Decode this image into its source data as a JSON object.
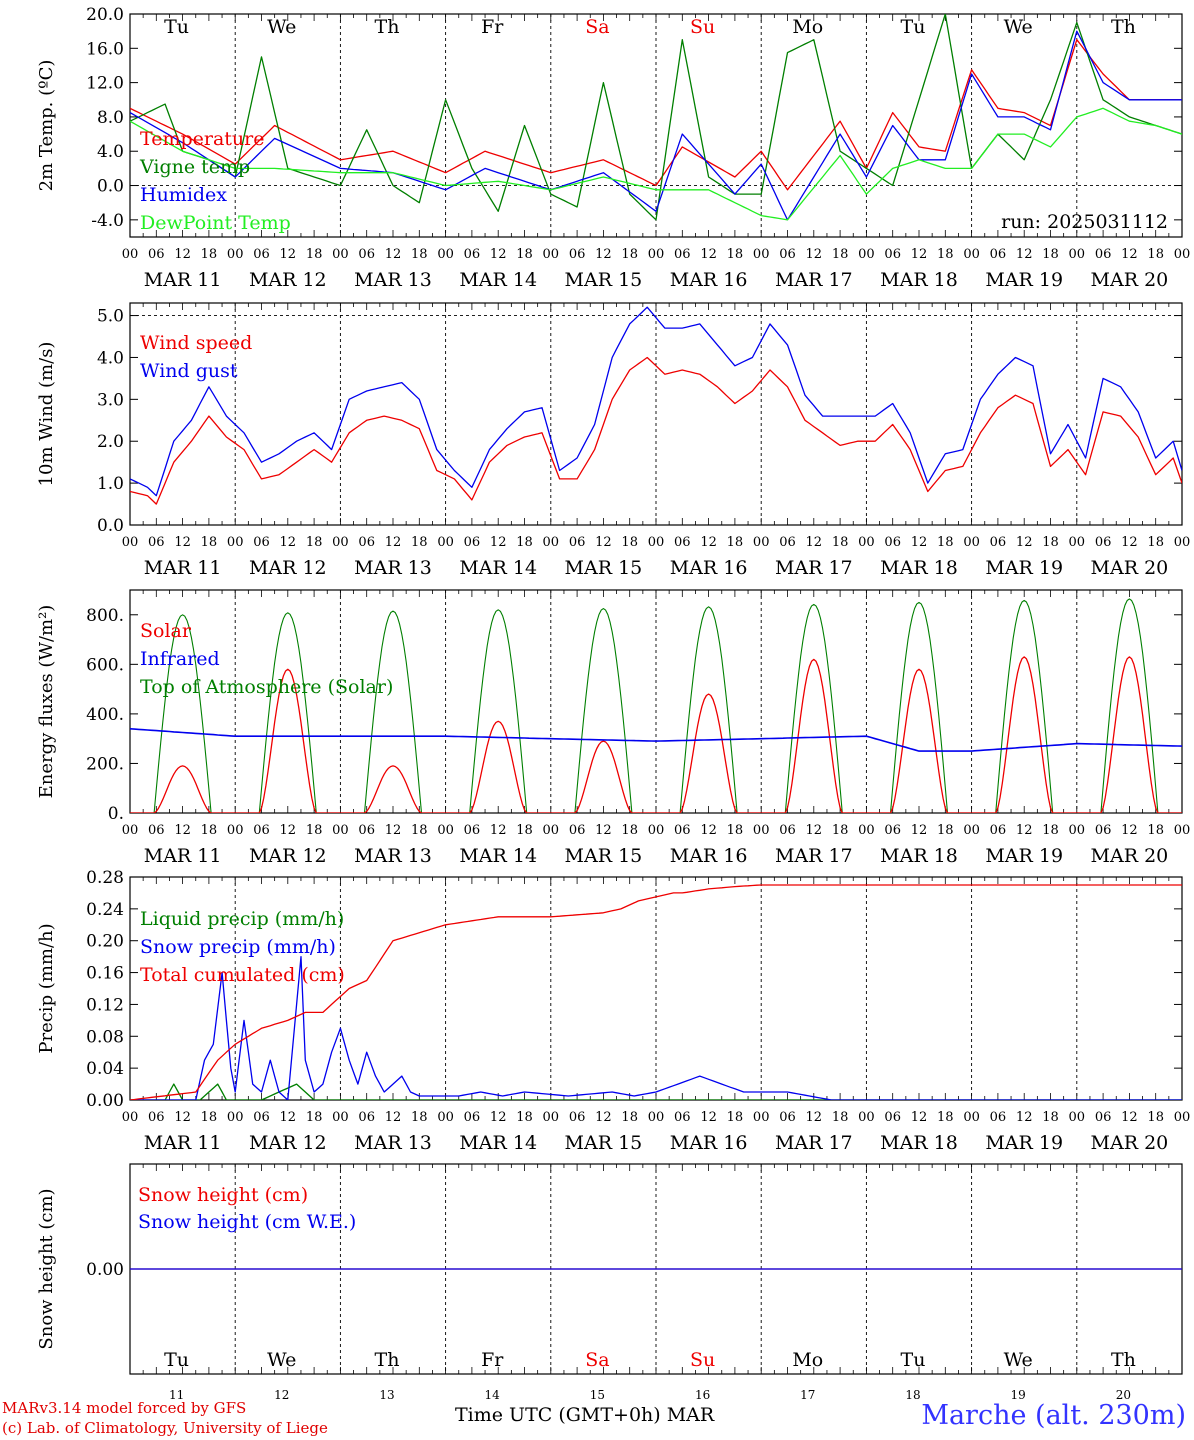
{
  "run_label": "run: 2025031112",
  "xaxis_title": "Time UTC (GMT+0h) MAR",
  "credit_lines": [
    "MARv3.14 model forced by GFS",
    "(c) Lab. of Climatology, University of Liege"
  ],
  "station_label": "Marche (alt. 230m)",
  "day_abbrevs": [
    "Tu",
    "We",
    "Th",
    "Fr",
    "Sa",
    "Su",
    "Mo",
    "Tu",
    "We",
    "Th"
  ],
  "weekend_color_days": [
    "Sa",
    "Su"
  ],
  "date_labels": [
    "MAR 11",
    "MAR 12",
    "MAR 13",
    "MAR 14",
    "MAR 15",
    "MAR 16",
    "MAR 17",
    "MAR 18",
    "MAR 19",
    "MAR 20"
  ],
  "bottom_day_numbers": [
    "11",
    "12",
    "13",
    "14",
    "15",
    "16",
    "17",
    "18",
    "19",
    "20"
  ],
  "hour_ticks": [
    "00",
    "06",
    "12",
    "18"
  ],
  "colors": {
    "red": "#ee0000",
    "green": "#007f00",
    "blue": "#0000ee",
    "lightgreen": "#22ee22"
  },
  "chart_data": [
    {
      "type": "line",
      "ylabel": "2m Temp. (ºC)",
      "ylim": [
        -6,
        20
      ],
      "yticks": [
        "20.0",
        "16.0",
        "12.0",
        "8.0",
        "4.0",
        "0.0",
        "-4.0"
      ],
      "ytick_values": [
        20,
        16,
        12,
        8,
        4,
        0,
        -4
      ],
      "dashed_ref": [
        0
      ],
      "x_range_hours": [
        0,
        240
      ],
      "series": [
        {
          "name": "Temperature",
          "color": "#ee0000",
          "x": [
            0,
            12,
            24,
            33,
            48,
            60,
            72,
            81,
            96,
            108,
            120,
            126,
            138,
            144,
            150,
            162,
            168,
            174,
            180,
            186,
            192,
            198,
            204,
            210,
            216,
            222,
            228,
            234,
            240
          ],
          "values": [
            9,
            6,
            2.5,
            7,
            3,
            4,
            1.5,
            4,
            1.5,
            3,
            0,
            4.5,
            1,
            4,
            -0.5,
            7.5,
            2,
            8.5,
            4.5,
            4,
            13.5,
            9,
            8.5,
            7,
            17,
            13,
            10,
            10,
            10
          ]
        },
        {
          "name": "Vigne temp",
          "color": "#007f00",
          "x": [
            0,
            8,
            12,
            18,
            24,
            30,
            36,
            42,
            48,
            54,
            60,
            66,
            72,
            78,
            84,
            90,
            96,
            102,
            108,
            114,
            120,
            126,
            132,
            138,
            144,
            150,
            156,
            162,
            168,
            174,
            180,
            186,
            192,
            198,
            204,
            210,
            216,
            222,
            228,
            234,
            240
          ],
          "values": [
            7.5,
            9.5,
            4,
            3,
            1,
            15,
            2,
            1,
            0,
            6.5,
            0,
            -2,
            10,
            2,
            -3,
            7,
            -1,
            -2.5,
            12,
            -1,
            -4,
            17,
            1,
            -1,
            -1,
            15.5,
            17,
            4,
            2,
            0,
            10,
            20,
            2,
            6,
            3,
            10,
            19,
            10,
            8,
            7,
            6
          ]
        },
        {
          "name": "Humidex",
          "color": "#0000ee",
          "x": [
            0,
            12,
            24,
            33,
            48,
            60,
            72,
            81,
            96,
            108,
            120,
            126,
            138,
            144,
            150,
            162,
            168,
            174,
            180,
            186,
            192,
            198,
            204,
            210,
            216,
            222,
            228,
            234,
            240
          ],
          "values": [
            8.5,
            5,
            1,
            5.5,
            2,
            1.5,
            -0.5,
            2,
            -0.5,
            1.5,
            -3,
            6,
            -1,
            2.5,
            -4,
            6,
            1,
            7,
            3,
            3,
            13,
            8,
            8,
            6.5,
            18,
            12,
            10,
            10,
            10
          ]
        },
        {
          "name": "DewPoint Temp",
          "color": "#22ee22",
          "x": [
            0,
            12,
            24,
            33,
            48,
            60,
            72,
            84,
            96,
            108,
            120,
            132,
            144,
            150,
            162,
            168,
            174,
            180,
            186,
            192,
            198,
            204,
            210,
            216,
            222,
            228,
            234,
            240
          ],
          "values": [
            7.5,
            4,
            2,
            2,
            1.5,
            1.5,
            0,
            0.5,
            -0.5,
            1,
            -0.5,
            -0.5,
            -3.5,
            -4,
            3.5,
            -1,
            2,
            3,
            2,
            2,
            6,
            6,
            4.5,
            8,
            9,
            7.5,
            7,
            6
          ]
        }
      ]
    },
    {
      "type": "line",
      "ylabel": "10m Wind (m/s)",
      "ylim": [
        0,
        5.3
      ],
      "yticks": [
        "5.0",
        "4.0",
        "3.0",
        "2.0",
        "1.0",
        "0.0"
      ],
      "ytick_values": [
        5,
        4,
        3,
        2,
        1,
        0
      ],
      "dashed_ref": [
        5
      ],
      "x_range_hours": [
        0,
        240
      ],
      "series": [
        {
          "name": "Wind speed",
          "color": "#ee0000",
          "x": [
            0,
            4,
            6,
            10,
            14,
            18,
            22,
            26,
            30,
            34,
            38,
            42,
            46,
            50,
            54,
            58,
            62,
            66,
            70,
            74,
            78,
            82,
            86,
            90,
            94,
            98,
            102,
            106,
            110,
            114,
            118,
            122,
            126,
            130,
            134,
            138,
            142,
            146,
            150,
            154,
            158,
            162,
            166,
            170,
            174,
            178,
            182,
            186,
            190,
            194,
            198,
            202,
            206,
            210,
            214,
            218,
            222,
            226,
            230,
            234,
            238,
            240
          ],
          "values": [
            0.8,
            0.7,
            0.5,
            1.5,
            2,
            2.6,
            2.1,
            1.8,
            1.1,
            1.2,
            1.5,
            1.8,
            1.5,
            2.2,
            2.5,
            2.6,
            2.5,
            2.3,
            1.3,
            1.1,
            0.6,
            1.5,
            1.9,
            2.1,
            2.2,
            1.1,
            1.1,
            1.8,
            3,
            3.7,
            4,
            3.6,
            3.7,
            3.6,
            3.3,
            2.9,
            3.2,
            3.7,
            3.3,
            2.5,
            2.2,
            1.9,
            2,
            2,
            2.4,
            1.8,
            0.8,
            1.3,
            1.4,
            2.2,
            2.8,
            3.1,
            2.9,
            1.4,
            1.8,
            1.2,
            2.7,
            2.6,
            2.1,
            1.2,
            1.6,
            1
          ]
        },
        {
          "name": "Wind gust",
          "color": "#0000ee",
          "x": [
            0,
            4,
            6,
            10,
            14,
            18,
            22,
            26,
            30,
            34,
            38,
            42,
            46,
            50,
            54,
            58,
            62,
            66,
            70,
            74,
            78,
            82,
            86,
            90,
            94,
            98,
            102,
            106,
            110,
            114,
            118,
            122,
            126,
            130,
            134,
            138,
            142,
            146,
            150,
            154,
            158,
            162,
            166,
            170,
            174,
            178,
            182,
            186,
            190,
            194,
            198,
            202,
            206,
            210,
            214,
            218,
            222,
            226,
            230,
            234,
            238,
            240
          ],
          "values": [
            1.1,
            0.9,
            0.7,
            2,
            2.5,
            3.3,
            2.6,
            2.2,
            1.5,
            1.7,
            2,
            2.2,
            1.8,
            3,
            3.2,
            3.3,
            3.4,
            3,
            1.8,
            1.3,
            0.9,
            1.8,
            2.3,
            2.7,
            2.8,
            1.3,
            1.6,
            2.4,
            4,
            4.8,
            5.2,
            4.7,
            4.7,
            4.8,
            4.3,
            3.8,
            4,
            4.8,
            4.3,
            3.1,
            2.6,
            2.6,
            2.6,
            2.6,
            2.9,
            2.2,
            1,
            1.7,
            1.8,
            3,
            3.6,
            4,
            3.8,
            1.7,
            2.4,
            1.6,
            3.5,
            3.3,
            2.7,
            1.6,
            2,
            1.3
          ]
        }
      ]
    },
    {
      "type": "line",
      "ylabel": "Energy fluxes (W/m²)",
      "ylim": [
        0,
        900
      ],
      "yticks": [
        "800.",
        "600.",
        "400.",
        "200.",
        "0."
      ],
      "ytick_values": [
        800,
        600,
        400,
        200,
        0
      ],
      "x_range_hours": [
        0,
        240
      ],
      "daily_solar_peak": [
        190,
        580,
        190,
        370,
        290,
        480,
        620,
        580,
        630,
        630
      ],
      "daily_toa_peak": [
        800,
        808,
        815,
        820,
        825,
        832,
        842,
        850,
        858,
        864
      ],
      "series": [
        {
          "name": "Solar",
          "color": "#ee0000"
        },
        {
          "name": "Infrared",
          "color": "#0000ee",
          "x": [
            0,
            24,
            48,
            72,
            96,
            120,
            144,
            168,
            180,
            192,
            216,
            240
          ],
          "values": [
            340,
            310,
            310,
            310,
            300,
            290,
            300,
            310,
            250,
            250,
            280,
            270
          ]
        },
        {
          "name": "Top of Atmosphere (Solar)",
          "color": "#007f00"
        }
      ]
    },
    {
      "type": "line",
      "ylabel": "Precip (mm/h)",
      "ylim": [
        0,
        0.28
      ],
      "yticks": [
        "0.28",
        "0.24",
        "0.20",
        "0.16",
        "0.12",
        "0.08",
        "0.04",
        "0.00"
      ],
      "ytick_values": [
        0.28,
        0.24,
        0.2,
        0.16,
        0.12,
        0.08,
        0.04,
        0
      ],
      "x_range_hours": [
        0,
        240
      ],
      "series": [
        {
          "name": "Liquid precip (mm/h)",
          "color": "#007f00",
          "x": [
            0,
            8,
            10,
            12,
            16,
            18,
            20,
            22,
            30,
            38,
            40,
            42,
            60,
            240
          ],
          "values": [
            0,
            0,
            0.02,
            0,
            0,
            0.01,
            0.02,
            0,
            0,
            0.02,
            0.01,
            0,
            0,
            0
          ]
        },
        {
          "name": "Snow precip (mm/h)",
          "color": "#0000ee",
          "x": [
            0,
            15,
            17,
            19,
            21,
            23,
            24,
            26,
            28,
            30,
            32,
            34,
            36,
            38,
            39,
            40,
            42,
            44,
            46,
            48,
            50,
            52,
            54,
            56,
            58,
            60,
            62,
            64,
            66,
            70,
            75,
            80,
            85,
            90,
            100,
            110,
            115,
            120,
            125,
            130,
            135,
            140,
            150,
            160,
            240
          ],
          "values": [
            0,
            0,
            0.05,
            0.07,
            0.16,
            0.04,
            0.01,
            0.1,
            0.02,
            0.01,
            0.05,
            0.01,
            0,
            0.12,
            0.18,
            0.05,
            0.01,
            0.02,
            0.06,
            0.09,
            0.05,
            0.02,
            0.06,
            0.03,
            0.01,
            0.02,
            0.03,
            0.01,
            0.005,
            0.005,
            0.005,
            0.01,
            0.005,
            0.01,
            0.005,
            0.01,
            0.005,
            0.01,
            0.02,
            0.03,
            0.02,
            0.01,
            0.01,
            0,
            0
          ]
        },
        {
          "name": "Total cumulated (cm)",
          "color": "#ee0000",
          "x": [
            0,
            15,
            20,
            24,
            30,
            36,
            40,
            44,
            50,
            54,
            60,
            66,
            72,
            84,
            96,
            108,
            112,
            116,
            120,
            124,
            126,
            132,
            138,
            144,
            150,
            240
          ],
          "values": [
            0,
            0.01,
            0.05,
            0.07,
            0.09,
            0.1,
            0.11,
            0.11,
            0.14,
            0.15,
            0.2,
            0.21,
            0.22,
            0.23,
            0.23,
            0.235,
            0.24,
            0.25,
            0.255,
            0.26,
            0.26,
            0.265,
            0.268,
            0.27,
            0.27,
            0.27
          ]
        }
      ]
    },
    {
      "type": "line",
      "ylabel": "Snow height (cm)",
      "ylim": [
        -1,
        1
      ],
      "yticks": [
        "0.00"
      ],
      "ytick_values": [
        0
      ],
      "x_range_hours": [
        0,
        240
      ],
      "series": [
        {
          "name": "Snow height (cm)",
          "color": "#ee0000",
          "x": [
            0,
            240
          ],
          "values": [
            0,
            0
          ]
        },
        {
          "name": "Snow height (cm W.E.)",
          "color": "#0000ee",
          "x": [
            0,
            240
          ],
          "values": [
            0,
            0
          ]
        }
      ]
    }
  ]
}
